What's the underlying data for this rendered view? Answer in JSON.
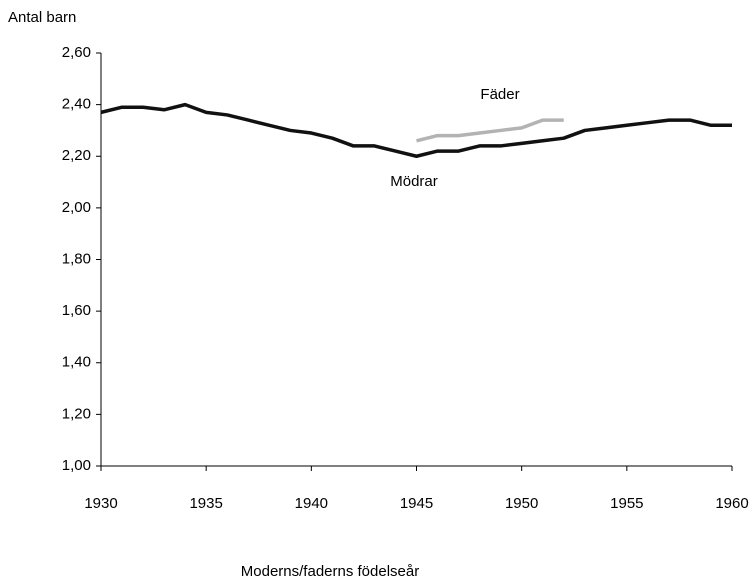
{
  "chart_data": {
    "type": "line",
    "y_label": "Antal barn",
    "x_label": "Moderns/faderns födelseår",
    "x": [
      1930,
      1931,
      1932,
      1933,
      1934,
      1935,
      1936,
      1937,
      1938,
      1939,
      1940,
      1941,
      1942,
      1943,
      1944,
      1945,
      1946,
      1947,
      1948,
      1949,
      1950,
      1951,
      1952,
      1953,
      1954,
      1955,
      1956,
      1957,
      1958,
      1959,
      1960
    ],
    "series": [
      {
        "name": "Mödrar",
        "color": "#111111",
        "values": [
          2.37,
          2.39,
          2.39,
          2.38,
          2.4,
          2.37,
          2.36,
          2.34,
          2.32,
          2.3,
          2.29,
          2.27,
          2.24,
          2.24,
          2.22,
          2.2,
          2.22,
          2.22,
          2.24,
          2.24,
          2.25,
          2.26,
          2.27,
          2.3,
          2.31,
          2.32,
          2.33,
          2.34,
          2.34,
          2.32,
          2.32
        ]
      },
      {
        "name": "Fäder",
        "color": "#b3b3b3",
        "values": [
          null,
          null,
          null,
          null,
          null,
          null,
          null,
          null,
          null,
          null,
          null,
          null,
          null,
          null,
          null,
          2.26,
          2.28,
          2.28,
          2.29,
          2.3,
          2.31,
          2.34,
          2.34,
          null,
          null,
          null,
          null,
          null,
          null,
          null,
          null
        ]
      }
    ],
    "xlim": [
      1930,
      1960
    ],
    "xticks": [
      1930,
      1935,
      1940,
      1945,
      1950,
      1955,
      1960
    ],
    "ylim": [
      1,
      2.6
    ],
    "yticks": [
      {
        "value": 1,
        "label": "1,00"
      },
      {
        "value": 1.2,
        "label": "1,20"
      },
      {
        "value": 1.4,
        "label": "1,40"
      },
      {
        "value": 1.6,
        "label": "1,60"
      },
      {
        "value": 1.8,
        "label": "1,80"
      },
      {
        "value": 2,
        "label": "2,00"
      },
      {
        "value": 2.2,
        "label": "2,20"
      },
      {
        "value": 2.4,
        "label": "2,40"
      },
      {
        "value": 2.6,
        "label": "2,60"
      }
    ],
    "grid": false
  }
}
